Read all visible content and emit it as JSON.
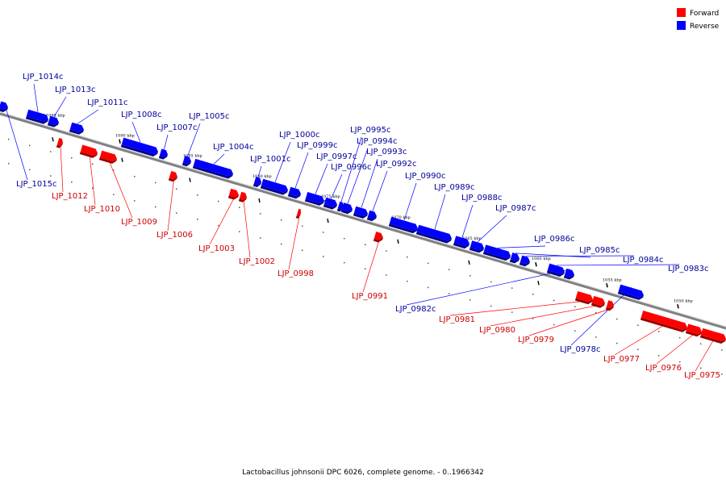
{
  "caption": "Lactobacillus johnsonii DPC 6026, complete genome. - 0..1966342",
  "legend": [
    {
      "label": "Forward",
      "color": "#ff0000"
    },
    {
      "label": "Reverse",
      "color": "#0000ff"
    }
  ],
  "colors": {
    "forward": "#ff0000",
    "reverse": "#0000ff",
    "backbone": "#808080",
    "forward_label": "#cc0000",
    "reverse_label": "#000099"
  },
  "ticks": [
    "1095 kbp",
    "1090 kbp",
    "1085 kbp",
    "1080 kbp",
    "1075 kbp",
    "1070 kbp",
    "1065 kbp",
    "1060 kbp",
    "1055 kbp",
    "1050 kbp"
  ],
  "genes": [
    {
      "name": "LJP_1015c",
      "strand": "reverse"
    },
    {
      "name": "LJP_1014c",
      "strand": "reverse"
    },
    {
      "name": "LJP_1013c",
      "strand": "reverse"
    },
    {
      "name": "LJP_1012",
      "strand": "forward"
    },
    {
      "name": "LJP_1011c",
      "strand": "reverse"
    },
    {
      "name": "LJP_1010",
      "strand": "forward"
    },
    {
      "name": "LJP_1009",
      "strand": "forward"
    },
    {
      "name": "LJP_1008c",
      "strand": "reverse"
    },
    {
      "name": "LJP_1007c",
      "strand": "reverse"
    },
    {
      "name": "LJP_1006",
      "strand": "forward"
    },
    {
      "name": "LJP_1005c",
      "strand": "reverse"
    },
    {
      "name": "LJP_1004c",
      "strand": "reverse"
    },
    {
      "name": "LJP_1003",
      "strand": "forward"
    },
    {
      "name": "LJP_1002",
      "strand": "forward"
    },
    {
      "name": "LJP_1001c",
      "strand": "reverse"
    },
    {
      "name": "LJP_1000c",
      "strand": "reverse"
    },
    {
      "name": "LJP_0999c",
      "strand": "reverse"
    },
    {
      "name": "LJP_0998",
      "strand": "forward"
    },
    {
      "name": "LJP_0997c",
      "strand": "reverse"
    },
    {
      "name": "LJP_0996c",
      "strand": "reverse"
    },
    {
      "name": "LJP_0995c",
      "strand": "reverse"
    },
    {
      "name": "LJP_0994c",
      "strand": "reverse"
    },
    {
      "name": "LJP_0993c",
      "strand": "reverse"
    },
    {
      "name": "LJP_0992c",
      "strand": "reverse"
    },
    {
      "name": "LJP_0991",
      "strand": "forward"
    },
    {
      "name": "LJP_0990c",
      "strand": "reverse"
    },
    {
      "name": "LJP_0989c",
      "strand": "reverse"
    },
    {
      "name": "LJP_0988c",
      "strand": "reverse"
    },
    {
      "name": "LJP_0987c",
      "strand": "reverse"
    },
    {
      "name": "LJP_0986c",
      "strand": "reverse"
    },
    {
      "name": "LJP_0985c",
      "strand": "reverse"
    },
    {
      "name": "LJP_0984c",
      "strand": "reverse"
    },
    {
      "name": "LJP_0983c",
      "strand": "reverse"
    },
    {
      "name": "LJP_0982c",
      "strand": "reverse"
    },
    {
      "name": "LJP_0981",
      "strand": "forward"
    },
    {
      "name": "LJP_0980",
      "strand": "forward"
    },
    {
      "name": "LJP_0979",
      "strand": "forward"
    },
    {
      "name": "LJP_0978c",
      "strand": "reverse"
    },
    {
      "name": "LJP_0977",
      "strand": "forward"
    },
    {
      "name": "LJP_0976",
      "strand": "forward"
    },
    {
      "name": "LJP_0975",
      "strand": "forward"
    }
  ]
}
